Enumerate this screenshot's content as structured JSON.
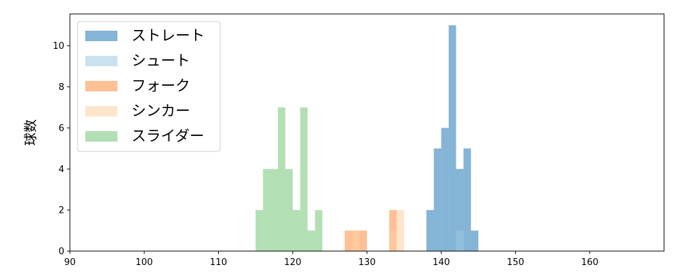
{
  "chart_data": {
    "type": "histogram",
    "ylabel": "球数",
    "xlim": [
      90,
      170
    ],
    "ylim": [
      0,
      11.55
    ],
    "x_ticks": [
      90,
      100,
      110,
      120,
      130,
      140,
      150,
      160
    ],
    "y_ticks": [
      0,
      2,
      4,
      6,
      8,
      10
    ],
    "grid": false,
    "legend_position": "top-left",
    "series": [
      {
        "name": "ストレート",
        "color": "#1f77b4",
        "bins": [
          {
            "x0": 138,
            "x1": 139,
            "count": 2
          },
          {
            "x0": 139,
            "x1": 140,
            "count": 5
          },
          {
            "x0": 140,
            "x1": 141,
            "count": 6
          },
          {
            "x0": 141,
            "x1": 142,
            "count": 11
          },
          {
            "x0": 142,
            "x1": 143,
            "count": 4
          },
          {
            "x0": 143,
            "x1": 144,
            "count": 5
          },
          {
            "x0": 144,
            "x1": 145,
            "count": 1
          }
        ]
      },
      {
        "name": "シュート",
        "color": "#9ecae1",
        "bins": [
          {
            "x0": 142,
            "x1": 143,
            "count": 1
          }
        ]
      },
      {
        "name": "フォーク",
        "color": "#fd8d3c",
        "bins": [
          {
            "x0": 127,
            "x1": 128,
            "count": 1
          },
          {
            "x0": 128,
            "x1": 129,
            "count": 1
          },
          {
            "x0": 129,
            "x1": 130,
            "count": 1
          },
          {
            "x0": 133,
            "x1": 134,
            "count": 2
          }
        ]
      },
      {
        "name": "シンカー",
        "color": "#fdd0a2",
        "bins": [
          {
            "x0": 128,
            "x1": 129,
            "count": 1
          },
          {
            "x0": 133,
            "x1": 134,
            "count": 1
          },
          {
            "x0": 134,
            "x1": 135,
            "count": 2
          }
        ]
      },
      {
        "name": "スライダー",
        "color": "#74c476",
        "bins": [
          {
            "x0": 115,
            "x1": 116,
            "count": 2
          },
          {
            "x0": 116,
            "x1": 117,
            "count": 4
          },
          {
            "x0": 117,
            "x1": 118,
            "count": 4
          },
          {
            "x0": 118,
            "x1": 119,
            "count": 7
          },
          {
            "x0": 119,
            "x1": 120,
            "count": 4
          },
          {
            "x0": 120,
            "x1": 121,
            "count": 2
          },
          {
            "x0": 121,
            "x1": 122,
            "count": 7
          },
          {
            "x0": 122,
            "x1": 123,
            "count": 1
          },
          {
            "x0": 123,
            "x1": 124,
            "count": 2
          }
        ]
      }
    ]
  }
}
